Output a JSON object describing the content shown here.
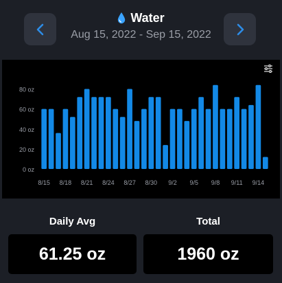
{
  "header": {
    "title": "Water",
    "icon": "water-drop-icon",
    "date_range": "Aug 15, 2022 - Sep 15, 2022",
    "prev_icon": "chevron-left-icon",
    "next_icon": "chevron-right-icon"
  },
  "colors": {
    "background": "#1c1f26",
    "button": "#2f333d",
    "accent": "#2d8ce6",
    "bar": "#1389e6",
    "panel": "#000000",
    "muted_text": "#9a9ea7"
  },
  "chart_data": {
    "type": "bar",
    "title": "",
    "xlabel": "",
    "ylabel": "",
    "y_unit": "oz",
    "ylim": [
      0,
      90
    ],
    "yticks": [
      0,
      20,
      40,
      60,
      80
    ],
    "ytick_labels": [
      "0  oz",
      "20  oz",
      "40  oz",
      "60  oz",
      "80  oz"
    ],
    "grid": false,
    "categories": [
      "8/15",
      "8/16",
      "8/17",
      "8/18",
      "8/19",
      "8/20",
      "8/21",
      "8/22",
      "8/23",
      "8/24",
      "8/25",
      "8/26",
      "8/27",
      "8/28",
      "8/29",
      "8/30",
      "8/31",
      "9/1",
      "9/2",
      "9/3",
      "9/4",
      "9/5",
      "9/6",
      "9/7",
      "9/8",
      "9/9",
      "9/10",
      "9/11",
      "9/12",
      "9/13",
      "9/14",
      "9/15"
    ],
    "xtick_labels": [
      "8/15",
      "8/18",
      "8/21",
      "8/24",
      "8/27",
      "8/30",
      "9/2",
      "9/5",
      "9/8",
      "9/11",
      "9/14"
    ],
    "series": [
      {
        "values": [
          60,
          60,
          36,
          60,
          52,
          72,
          80,
          72,
          72,
          72,
          60,
          52,
          80,
          48,
          60,
          72,
          72,
          24,
          60,
          60,
          48,
          60,
          72,
          60,
          84,
          60,
          60,
          72,
          60,
          64,
          84,
          12
        ]
      }
    ],
    "settings_icon": "sliders-icon"
  },
  "stats": {
    "daily_avg_label": "Daily Avg",
    "daily_avg_value": "61.25 oz",
    "total_label": "Total",
    "total_value": "1960 oz"
  }
}
